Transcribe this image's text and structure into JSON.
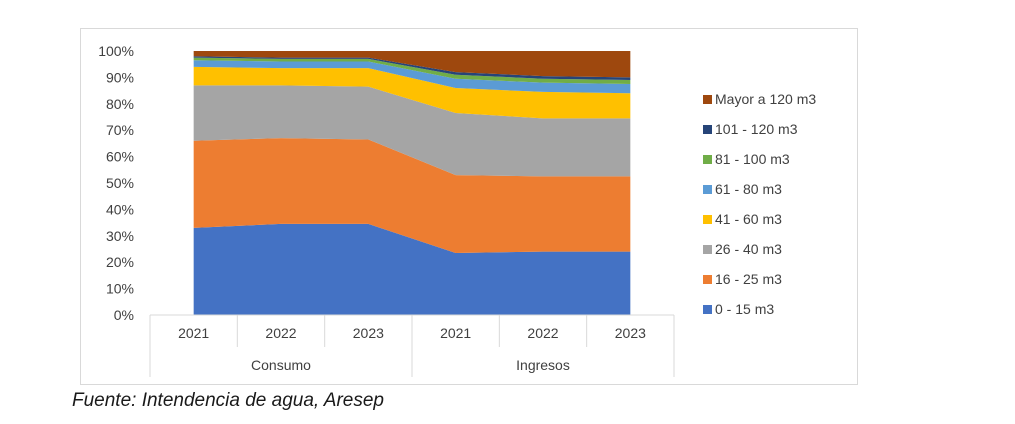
{
  "chart_data": {
    "type": "area",
    "stacked": true,
    "percent": true,
    "x": [
      "2021",
      "2022",
      "2023",
      "2021",
      "2022",
      "2023"
    ],
    "groups": [
      {
        "label": "Consumo",
        "span": [
          0,
          2
        ]
      },
      {
        "label": "Ingresos",
        "span": [
          3,
          5
        ]
      }
    ],
    "yticks": [
      "0%",
      "10%",
      "20%",
      "30%",
      "40%",
      "50%",
      "60%",
      "70%",
      "80%",
      "90%",
      "100%"
    ],
    "ylim": [
      0,
      100
    ],
    "series": [
      {
        "name": "0 - 15 m3",
        "color": "#4472C4",
        "values": [
          33,
          34.5,
          34.5,
          23.5,
          24,
          24
        ]
      },
      {
        "name": "16 - 25 m3",
        "color": "#ED7D31",
        "values": [
          33,
          32.5,
          32,
          29.5,
          28.5,
          28.5
        ]
      },
      {
        "name": "26 - 40 m3",
        "color": "#A5A5A5",
        "values": [
          21,
          20,
          20,
          23.5,
          22,
          22
        ]
      },
      {
        "name": "41 - 60 m3",
        "color": "#FFC000",
        "values": [
          7,
          6.5,
          7,
          9.5,
          10,
          9.5
        ]
      },
      {
        "name": "61 - 80 m3",
        "color": "#5B9BD5",
        "values": [
          2.5,
          2.5,
          2.5,
          3.5,
          3.5,
          3.5
        ]
      },
      {
        "name": "81 - 100 m3",
        "color": "#70AD47",
        "values": [
          1,
          1,
          1,
          1.5,
          1.5,
          1.5
        ]
      },
      {
        "name": "101 - 120 m3",
        "color": "#264478",
        "values": [
          0.5,
          0.5,
          0.5,
          1,
          1,
          1
        ]
      },
      {
        "name": "Mayor a 120 m3",
        "color": "#9E480E",
        "values": [
          2,
          2.5,
          2.5,
          8,
          9.5,
          10
        ]
      }
    ],
    "legend_position": "right"
  },
  "source": "Fuente: Intendencia de agua, Aresep"
}
